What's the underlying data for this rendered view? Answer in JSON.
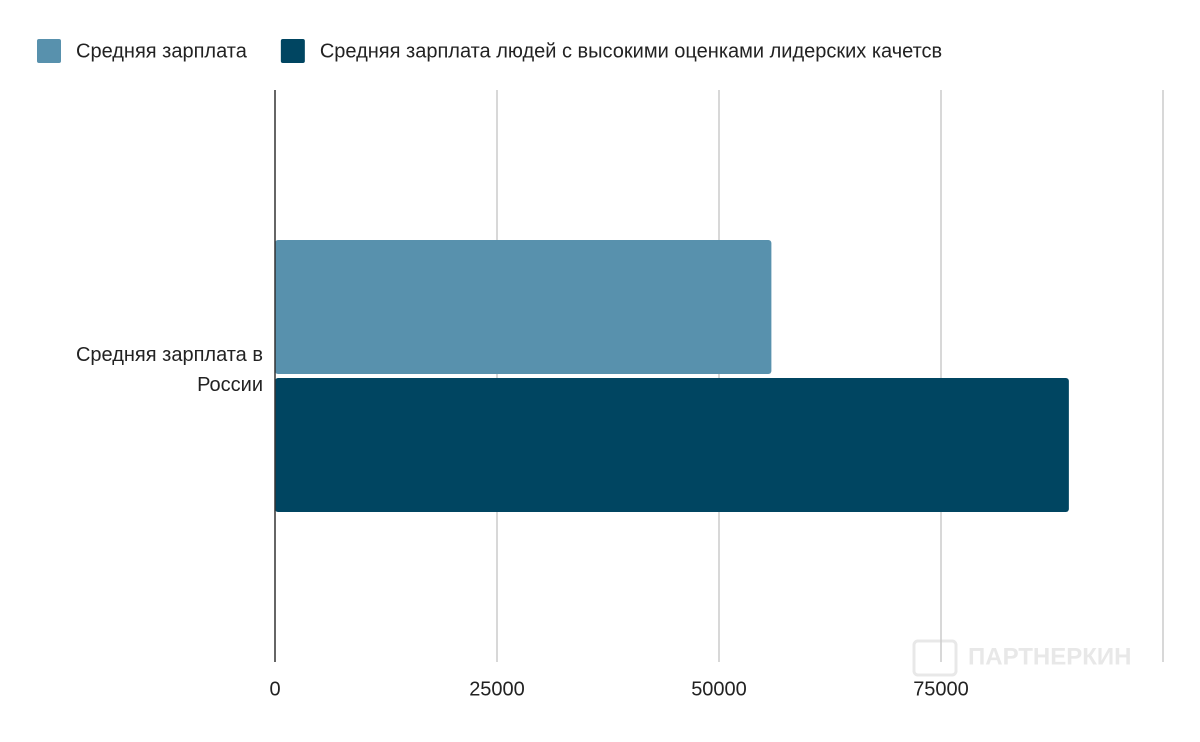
{
  "chart_data": {
    "type": "bar",
    "orientation": "horizontal",
    "categories": [
      "Средняя зарплата в России"
    ],
    "series": [
      {
        "name": "Средняя зарплата",
        "color": "#5891ad",
        "values": [
          55900
        ]
      },
      {
        "name": "Средняя зарплата людей с высокими оценками лидерских качетсв",
        "color": "#004561",
        "values": [
          89400
        ]
      }
    ],
    "xlim": [
      0,
      100000
    ],
    "xticks": [
      0,
      25000,
      50000,
      75000
    ],
    "grid": true,
    "legend": "top",
    "watermark": "ПАРТНЕРКИН"
  }
}
